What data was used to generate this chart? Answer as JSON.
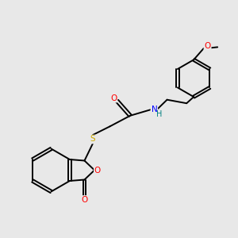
{
  "bg_color": "#e8e8e8",
  "bond_color": "#000000",
  "atom_colors": {
    "O": "#ff0000",
    "N": "#0000ff",
    "S": "#ccaa00",
    "H": "#008080",
    "C": "#000000"
  },
  "lw": 1.4,
  "dbo": 0.055,
  "xlim": [
    0,
    10
  ],
  "ylim": [
    0,
    10
  ]
}
